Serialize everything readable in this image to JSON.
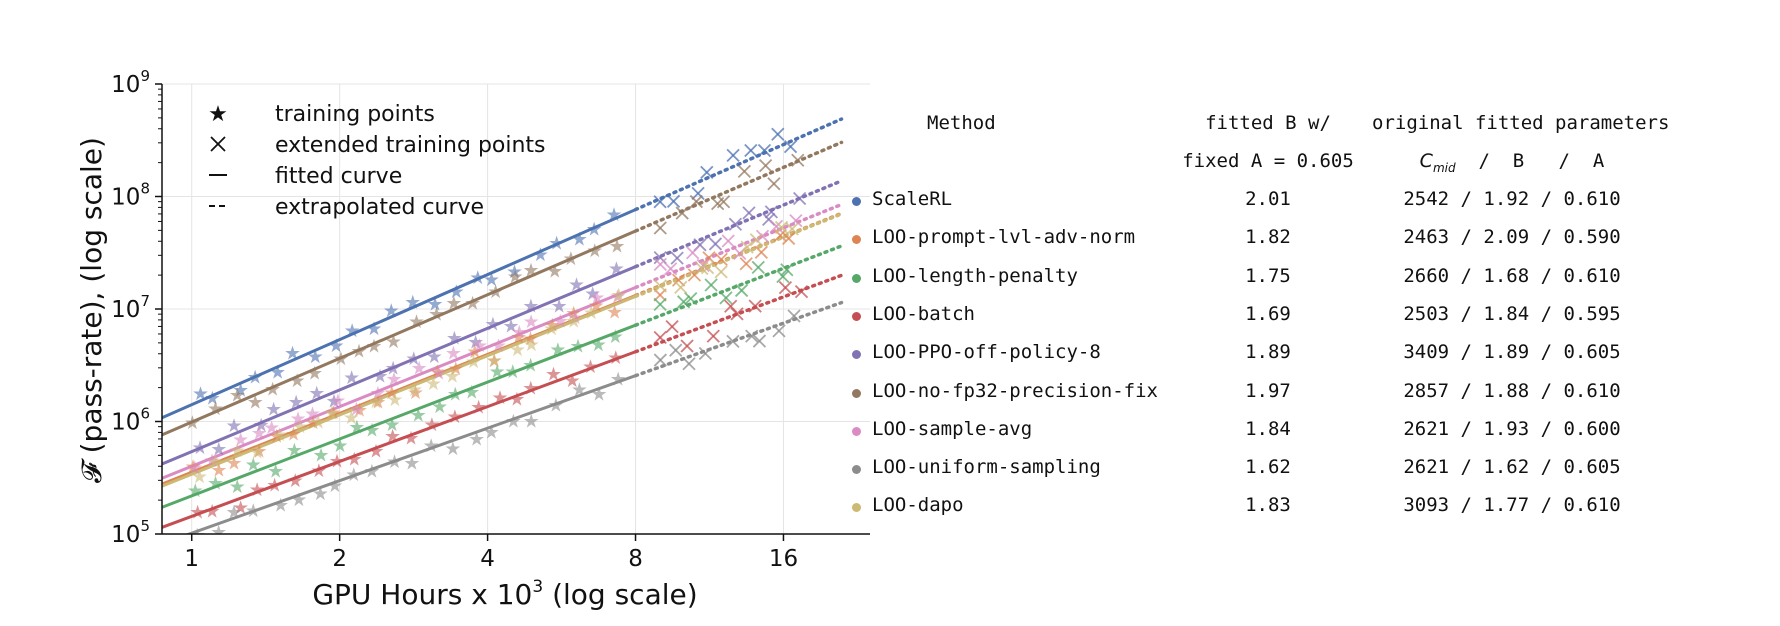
{
  "chart_data": {
    "type": "scatter",
    "xlabel": "GPU Hours x 10³ (log scale)",
    "ylabel": "𝓕 (pass-rate), (log scale)",
    "x_scale": "log2",
    "y_scale": "log10",
    "xlim": [
      0.87,
      24
    ],
    "ylim": [
      100000,
      1000000000
    ],
    "x_ticks": [
      {
        "value": 1,
        "label": "1"
      },
      {
        "value": 2,
        "label": "2"
      },
      {
        "value": 4,
        "label": "4"
      },
      {
        "value": 8,
        "label": "8"
      },
      {
        "value": 16,
        "label": "16"
      }
    ],
    "y_ticks": [
      {
        "value": 100000,
        "base": "10",
        "exp": "5"
      },
      {
        "value": 1000000,
        "base": "10",
        "exp": "6"
      },
      {
        "value": 10000000,
        "base": "10",
        "exp": "7"
      },
      {
        "value": 100000000,
        "base": "10",
        "exp": "8"
      },
      {
        "value": 1000000000,
        "base": "10",
        "exp": "9"
      }
    ],
    "grid": true,
    "legend_position": "top-left",
    "legend": [
      {
        "marker": "★",
        "label": "training points"
      },
      {
        "marker": "×",
        "label": "extended training points"
      },
      {
        "marker": "—",
        "label": "fitted curve"
      },
      {
        "marker": "--",
        "label": "extrapolated curve"
      }
    ],
    "fit_range_x": [
      0.8,
      8
    ],
    "extrapolation_range_x": [
      8,
      21
    ],
    "series": [
      {
        "name": "ScaleRL",
        "color": "#4c72b0",
        "fitted_B": "2.01",
        "original_params": "2542 / 1.92 / 0.610",
        "line_start_y": 920000,
        "slope_decades_per_log10x": 1.92
      },
      {
        "name": "LOO-prompt-lvl-adv-norm",
        "color": "#dd8452",
        "fitted_B": "1.82",
        "original_params": "2463 / 2.09 / 0.590",
        "line_start_y": 240000,
        "slope_decades_per_log10x": 1.74
      },
      {
        "name": "LOO-length-penalty",
        "color": "#55a868",
        "fitted_B": "1.75",
        "original_params": "2660 / 1.68 / 0.610",
        "line_start_y": 150000,
        "slope_decades_per_log10x": 1.68
      },
      {
        "name": "LOO-batch",
        "color": "#c44e52",
        "fitted_B": "1.69",
        "original_params": "2503 / 1.84 / 0.595",
        "line_start_y": 100000,
        "slope_decades_per_log10x": 1.62
      },
      {
        "name": "LOO-PPO-off-policy-8",
        "color": "#8172b3",
        "fitted_B": "1.89",
        "original_params": "3409 / 1.89 / 0.605",
        "line_start_y": 360000,
        "slope_decades_per_log10x": 1.82
      },
      {
        "name": "LOO-no-fp32-precision-fix",
        "color": "#937860",
        "fitted_B": "1.97",
        "original_params": "2857 / 1.88 / 0.610",
        "line_start_y": 650000,
        "slope_decades_per_log10x": 1.88
      },
      {
        "name": "LOO-sample-avg",
        "color": "#da8bc3",
        "fitted_B": "1.84",
        "original_params": "2621 / 1.93 / 0.600",
        "line_start_y": 270000,
        "slope_decades_per_log10x": 1.76
      },
      {
        "name": "LOO-uniform-sampling",
        "color": "#8c8c8c",
        "fitted_B": "1.62",
        "original_params": "2621 / 1.62 / 0.605",
        "line_start_y": 72000,
        "slope_decades_per_log10x": 1.55
      },
      {
        "name": "LOO-dapo",
        "color": "#ccb974",
        "fitted_B": "1.83",
        "original_params": "3093 / 1.77 / 0.610",
        "line_start_y": 230000,
        "slope_decades_per_log10x": 1.75
      }
    ]
  },
  "table": {
    "headers": {
      "method": "Method",
      "fitted_b_line1": "fitted B w/",
      "fitted_b_line2": "fixed A = 0.605",
      "original_line1": "original fitted parameters",
      "original_cmid": "C",
      "original_cmid_sub": "mid",
      "original_rest": "  /  B   /  A"
    }
  }
}
